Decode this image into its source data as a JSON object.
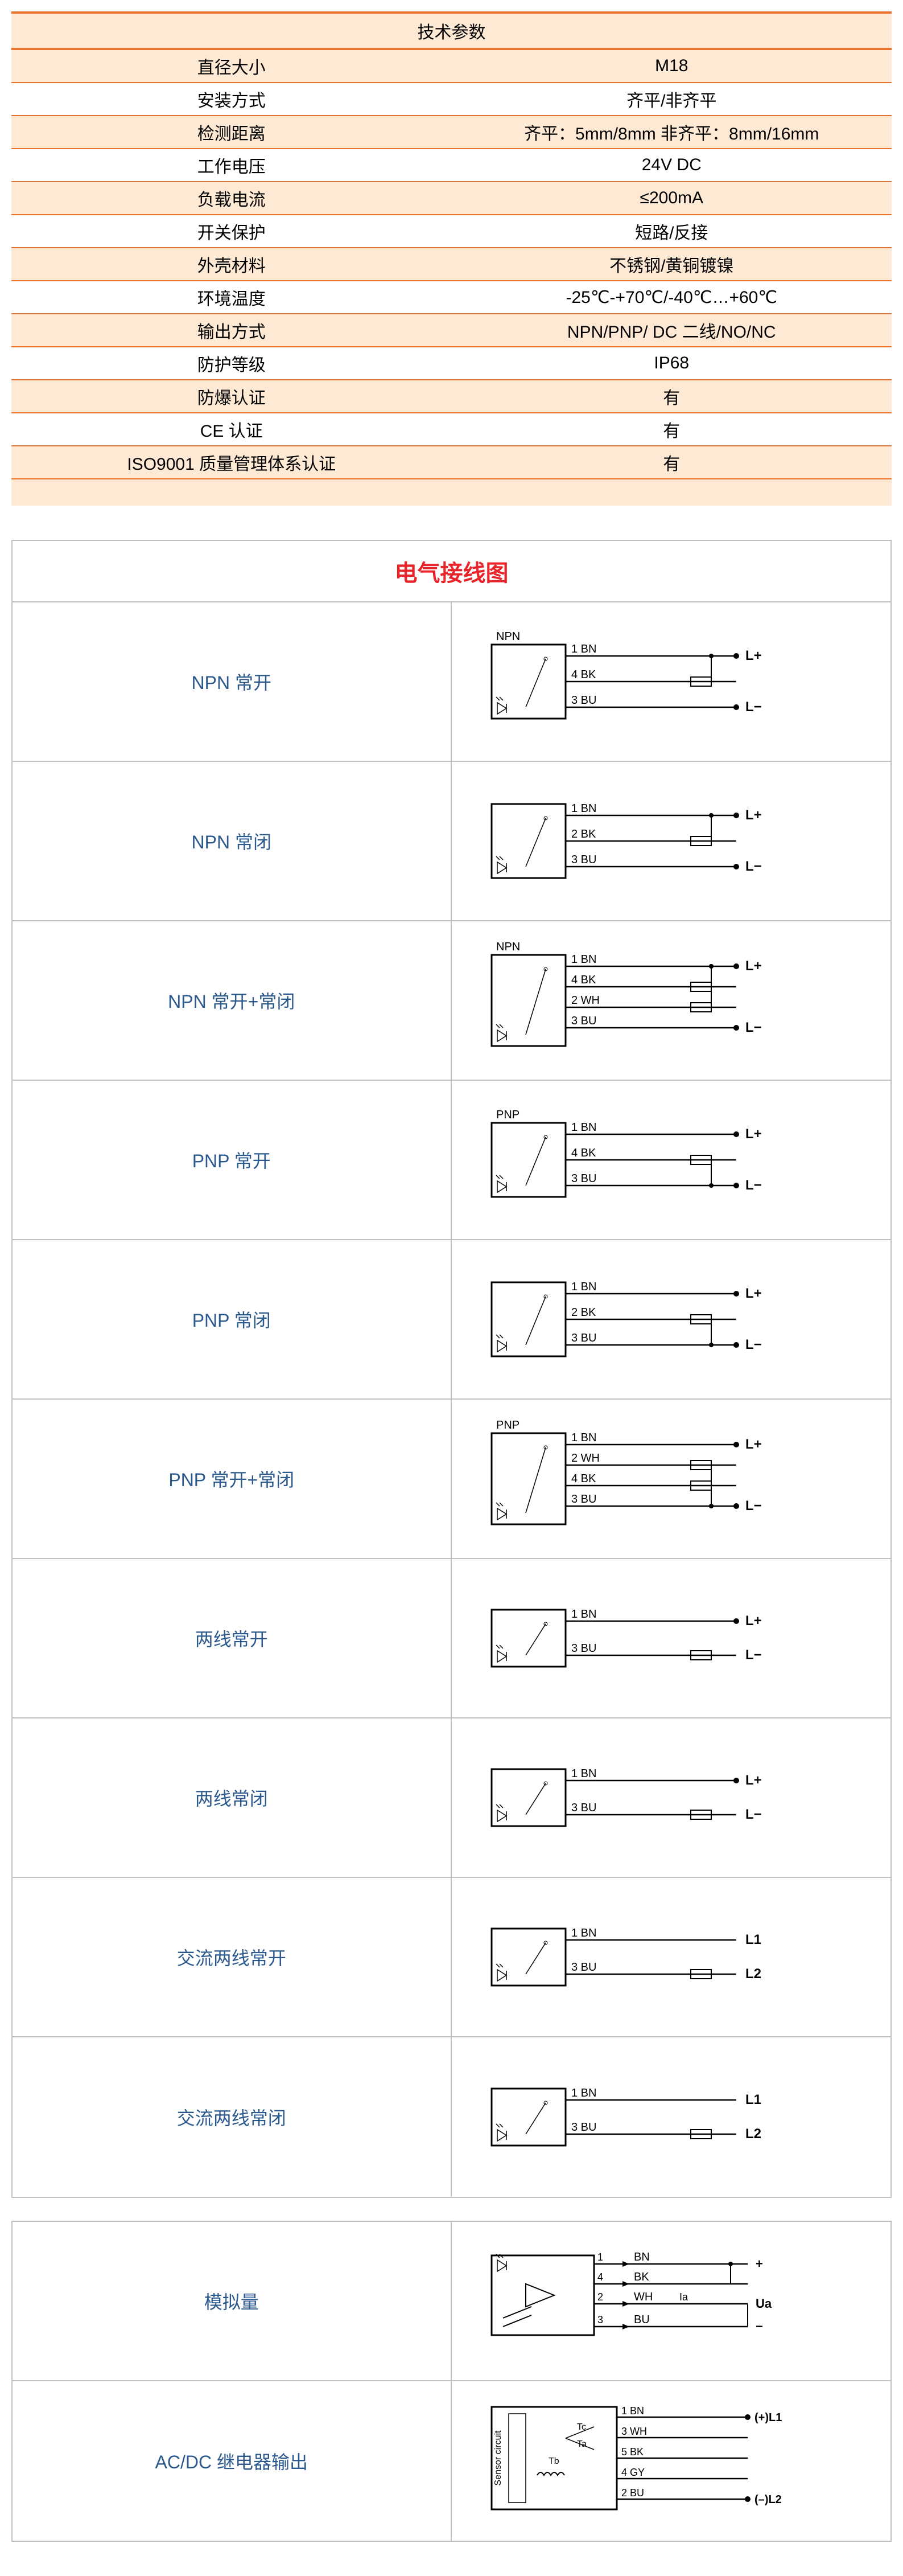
{
  "spec_table": {
    "header": "技术参数",
    "rows": [
      {
        "label": "直径大小",
        "value": "M18",
        "alt": true
      },
      {
        "label": "安装方式",
        "value": "齐平/非齐平",
        "alt": false
      },
      {
        "label": "检测距离",
        "value": "齐平：5mm/8mm   非齐平：8mm/16mm",
        "alt": true
      },
      {
        "label": "工作电压",
        "value": "24V DC",
        "alt": false
      },
      {
        "label": "负载电流",
        "value": "≤200mA",
        "alt": true
      },
      {
        "label": "开关保护",
        "value": "短路/反接",
        "alt": false
      },
      {
        "label": "外壳材料",
        "value": "不锈钢/黄铜镀镍",
        "alt": true
      },
      {
        "label": "环境温度",
        "value": "-25℃-+70℃/-40℃…+60℃",
        "alt": false
      },
      {
        "label": "输出方式",
        "value": "NPN/PNP/ DC 二线/NO/NC",
        "alt": true
      },
      {
        "label": "防护等级",
        "value": "IP68",
        "alt": false
      },
      {
        "label": "防爆认证",
        "value": "有",
        "alt": true
      },
      {
        "label": "CE 认证",
        "value": "有",
        "alt": false
      },
      {
        "label": "ISO9001 质量管理体系认证",
        "value": "有",
        "alt": true
      }
    ]
  },
  "wiring": {
    "title": "电气接线图",
    "rows1": [
      {
        "label": "NPN 常开",
        "type": "npn3",
        "toplabel": "NPN",
        "wires": [
          {
            "num": "1",
            "name": "BN",
            "end": "L+",
            "dot": true
          },
          {
            "num": "4",
            "name": "BK",
            "end": "",
            "load": true
          },
          {
            "num": "3",
            "name": "BU",
            "end": "L−",
            "dot": true
          }
        ]
      },
      {
        "label": "NPN 常闭",
        "type": "npn3",
        "toplabel": "",
        "wires": [
          {
            "num": "1",
            "name": "BN",
            "end": "L+",
            "dot": true
          },
          {
            "num": "2",
            "name": "BK",
            "end": "",
            "load": true
          },
          {
            "num": "3",
            "name": "BU",
            "end": "L−",
            "dot": true
          }
        ]
      },
      {
        "label": "NPN  常开+常闭",
        "type": "npn4",
        "toplabel": "NPN",
        "wires": [
          {
            "num": "1",
            "name": "BN",
            "end": "L+",
            "dot": true
          },
          {
            "num": "4",
            "name": "BK",
            "end": "",
            "load": true
          },
          {
            "num": "2",
            "name": "WH",
            "end": "",
            "load": true
          },
          {
            "num": "3",
            "name": "BU",
            "end": "L−",
            "dot": true
          }
        ]
      },
      {
        "label": "PNP 常开",
        "type": "pnp3",
        "toplabel": "PNP",
        "wires": [
          {
            "num": "1",
            "name": "BN",
            "end": "L+",
            "dot": true
          },
          {
            "num": "4",
            "name": "BK",
            "end": "",
            "load": true
          },
          {
            "num": "3",
            "name": "BU",
            "end": "L−",
            "dot": true
          }
        ]
      },
      {
        "label": "PNP 常闭",
        "type": "pnp3",
        "toplabel": "",
        "wires": [
          {
            "num": "1",
            "name": "BN",
            "end": "L+",
            "dot": true
          },
          {
            "num": "2",
            "name": "BK",
            "end": "",
            "load": true
          },
          {
            "num": "3",
            "name": "BU",
            "end": "L−",
            "dot": true
          }
        ]
      },
      {
        "label": "PNP  常开+常闭",
        "type": "pnp4",
        "toplabel": "PNP",
        "wires": [
          {
            "num": "1",
            "name": "BN",
            "end": "L+",
            "dot": true
          },
          {
            "num": "2",
            "name": "WH",
            "end": "",
            "load": true
          },
          {
            "num": "4",
            "name": "BK",
            "end": "",
            "load": true
          },
          {
            "num": "3",
            "name": "BU",
            "end": "L−",
            "dot": true
          }
        ]
      },
      {
        "label": "两线常开",
        "type": "twowire",
        "toplabel": "",
        "wires": [
          {
            "num": "1",
            "name": "BN",
            "end": "L+",
            "dot": true
          },
          {
            "num": "3",
            "name": "BU",
            "end": "L−",
            "load": true
          }
        ]
      },
      {
        "label": "两线常闭",
        "type": "twowire",
        "toplabel": "",
        "wires": [
          {
            "num": "1",
            "name": "BN",
            "end": "L+",
            "dot": true
          },
          {
            "num": "3",
            "name": "BU",
            "end": "L−",
            "load": true
          }
        ]
      },
      {
        "label": "交流两线常开",
        "type": "twowire",
        "toplabel": "",
        "wires": [
          {
            "num": "1",
            "name": "BN",
            "end": "L1",
            "dot": false
          },
          {
            "num": "3",
            "name": "BU",
            "end": "L2",
            "load": true
          }
        ]
      },
      {
        "label": "交流两线常闭",
        "type": "twowire",
        "toplabel": "",
        "wires": [
          {
            "num": "1",
            "name": "BN",
            "end": "L1",
            "dot": false
          },
          {
            "num": "3",
            "name": "BU",
            "end": "L2",
            "load": true
          }
        ]
      }
    ],
    "rows2": [
      {
        "label": "模拟量",
        "type": "analog",
        "wires": [
          {
            "num": "1",
            "name": "BN",
            "end": "+"
          },
          {
            "num": "4",
            "name": "BK",
            "end": ""
          },
          {
            "num": "2",
            "name": "WH",
            "end": "Ua",
            "extra": "Ia"
          },
          {
            "num": "3",
            "name": "BU",
            "end": "−"
          }
        ]
      },
      {
        "label": "AC/DC 继电器输出",
        "type": "relay",
        "wires": [
          {
            "num": "1",
            "name": "BN",
            "end": "(+)L1"
          },
          {
            "num": "3",
            "name": "WH",
            "end": ""
          },
          {
            "num": "5",
            "name": "BK",
            "end": ""
          },
          {
            "num": "4",
            "name": "GY",
            "end": ""
          },
          {
            "num": "2",
            "name": "BU",
            "end": "(–)L2"
          }
        ],
        "inner": [
          "Tc",
          "Ta",
          "Tb"
        ],
        "side": "Sensor circuit"
      }
    ]
  },
  "colors": {
    "orange_border": "#e8762f",
    "alt_bg": "#fde9d4",
    "title_red": "#e8232a",
    "label_blue": "#2d5a8e",
    "grey_border": "#bfbfbf",
    "black": "#000000"
  }
}
